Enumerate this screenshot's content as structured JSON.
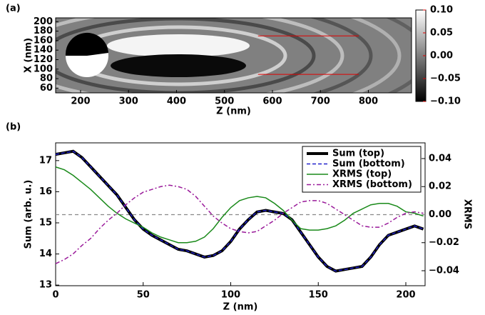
{
  "chart_data": [
    {
      "type": "image",
      "panel_label": "(a)",
      "xlabel": "Z (nm)",
      "ylabel": "X (nm)",
      "xlim": [
        148,
        890
      ],
      "ylim": [
        50,
        208
      ],
      "xticks": [
        200,
        300,
        400,
        500,
        600,
        700,
        800
      ],
      "yticks": [
        60,
        80,
        100,
        120,
        140,
        160,
        180,
        200
      ],
      "colormap": "gray",
      "clim": [
        -0.1,
        0.1
      ],
      "cticks": [
        {
          "value": 0.1,
          "label": "0.10"
        },
        0.05,
        {
          "value": 0,
          "label": "0.00"
        },
        {
          "value": -0.05,
          "label": "−0.05"
        },
        {
          "value": -0.1,
          "label": "−0.10"
        }
      ],
      "lines": [
        {
          "x": [
            570,
            780
          ],
          "y": [
            170,
            170
          ],
          "color": "#e00000"
        },
        {
          "x": [
            570,
            780
          ],
          "y": [
            89,
            89
          ],
          "color": "#e00000"
        }
      ]
    },
    {
      "type": "line",
      "panel_label": "(b)",
      "xlabel": "Z (nm)",
      "ylabel": "Sum (arb. u.)",
      "y2label": "XRMS",
      "xlim": [
        0,
        211
      ],
      "ylim": [
        12.98,
        17.57
      ],
      "y2lim": [
        -0.0507,
        0.0512
      ],
      "xticks": [
        0,
        50,
        100,
        150,
        200
      ],
      "yticks": [
        13,
        14,
        15,
        16,
        17
      ],
      "y2ticks": [
        0.04,
        0.02,
        {
          "value": 0,
          "label": "0.00"
        },
        {
          "value": -0.02,
          "label": "−0.02"
        },
        {
          "value": -0.04,
          "label": "−0.04"
        }
      ],
      "y2_reference": 0,
      "legend": "upper right",
      "x": [
        0,
        5,
        10,
        15,
        20,
        25,
        30,
        35,
        40,
        45,
        50,
        55,
        60,
        65,
        70,
        75,
        80,
        85,
        90,
        95,
        100,
        105,
        110,
        115,
        120,
        125,
        130,
        135,
        140,
        145,
        150,
        155,
        160,
        165,
        170,
        175,
        180,
        185,
        190,
        195,
        200,
        205,
        210
      ],
      "series": [
        {
          "name": "Sum (top)",
          "color": "#000000",
          "style": "solid",
          "width": 4,
          "values": [
            17.2,
            17.25,
            17.3,
            17.1,
            16.8,
            16.5,
            16.2,
            15.9,
            15.5,
            15.1,
            14.8,
            14.6,
            14.45,
            14.3,
            14.15,
            14.1,
            14.0,
            13.9,
            13.95,
            14.1,
            14.4,
            14.8,
            15.1,
            15.35,
            15.4,
            15.35,
            15.3,
            15.1,
            14.7,
            14.3,
            13.9,
            13.6,
            13.45,
            13.5,
            13.55,
            13.6,
            13.9,
            14.3,
            14.6,
            14.7,
            14.8,
            14.9,
            14.8
          ]
        },
        {
          "name": "Sum (bottom)",
          "color": "#2222cc",
          "style": "dashed",
          "width": 1.5,
          "values": [
            17.2,
            17.25,
            17.3,
            17.1,
            16.8,
            16.5,
            16.2,
            15.9,
            15.5,
            15.1,
            14.8,
            14.6,
            14.45,
            14.3,
            14.15,
            14.1,
            14.0,
            13.9,
            13.95,
            14.1,
            14.4,
            14.8,
            15.1,
            15.35,
            15.4,
            15.35,
            15.3,
            15.1,
            14.7,
            14.3,
            13.9,
            13.6,
            13.45,
            13.5,
            13.55,
            13.6,
            13.9,
            14.3,
            14.6,
            14.7,
            14.8,
            14.9,
            14.8
          ]
        },
        {
          "name": "XRMS (top)",
          "color": "#1a8a1a",
          "style": "solid",
          "width": 1.5,
          "axis": "y2",
          "values": [
            0.034,
            0.032,
            0.028,
            0.023,
            0.018,
            0.012,
            0.006,
            0.001,
            -0.003,
            -0.006,
            -0.009,
            -0.013,
            -0.016,
            -0.018,
            -0.02,
            -0.02,
            -0.019,
            -0.016,
            -0.01,
            -0.002,
            0.005,
            0.01,
            0.012,
            0.013,
            0.012,
            0.008,
            0.003,
            -0.004,
            -0.01,
            -0.011,
            -0.011,
            -0.01,
            -0.008,
            -0.004,
            0.001,
            0.004,
            0.007,
            0.008,
            0.008,
            0.006,
            0.002,
            0.001,
            -0.001
          ]
        },
        {
          "name": "XRMS (bottom)",
          "color": "#9a1a9a",
          "style": "dashdot",
          "width": 1.5,
          "axis": "y2",
          "values": [
            -0.035,
            -0.032,
            -0.028,
            -0.022,
            -0.017,
            -0.01,
            -0.004,
            0.001,
            0.007,
            0.012,
            0.016,
            0.018,
            0.02,
            0.021,
            0.02,
            0.018,
            0.013,
            0.006,
            -0.001,
            -0.006,
            -0.01,
            -0.012,
            -0.013,
            -0.012,
            -0.008,
            -0.004,
            0.001,
            0.005,
            0.009,
            0.01,
            0.01,
            0.008,
            0.004,
            0,
            -0.004,
            -0.008,
            -0.009,
            -0.009,
            -0.006,
            -0.002,
            0.001,
            0.002,
            0.001
          ]
        }
      ]
    }
  ]
}
